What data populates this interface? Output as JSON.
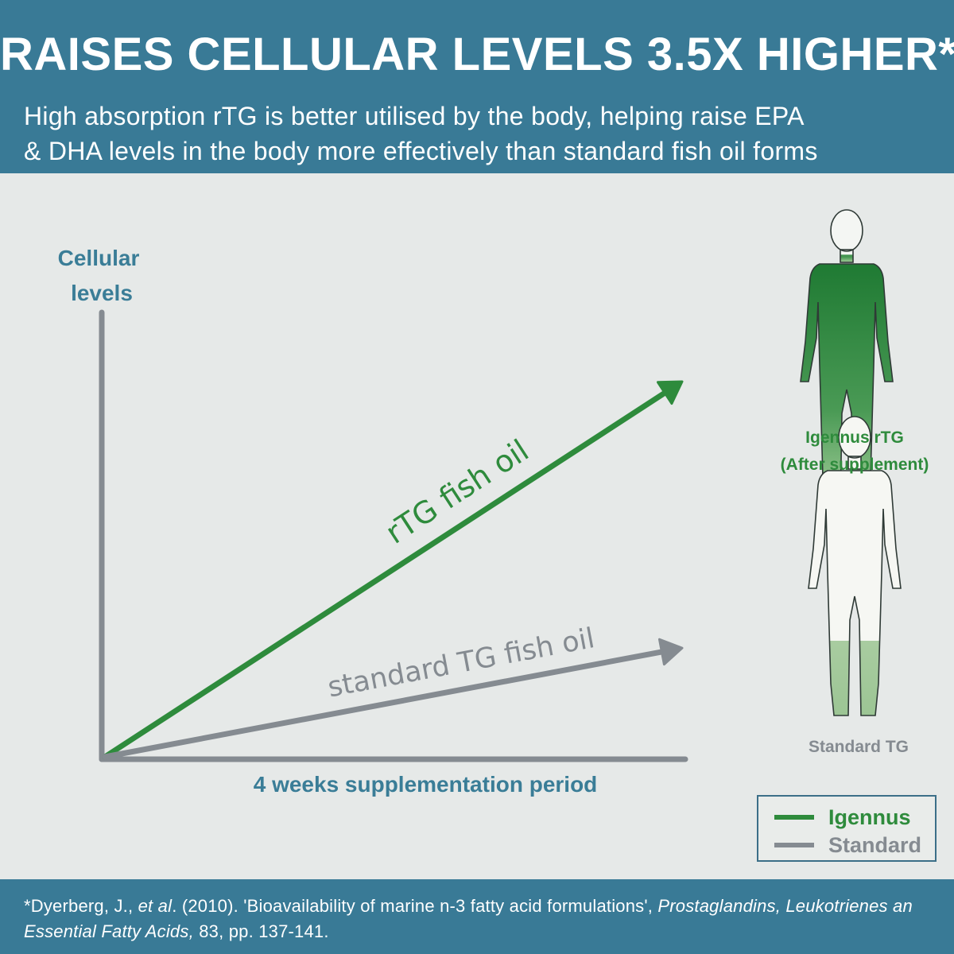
{
  "header": {
    "headline": "RAISES CELLULAR LEVELS 3.5X HIGHER*",
    "subline_1": "High absorption rTG  is better utilised by the body, helping raise EPA",
    "subline_2": "& DHA levels in the body more effectively than standard fish oil forms"
  },
  "chart_data": {
    "type": "line",
    "ylabel_line1": "Cellular",
    "ylabel_line2": "levels",
    "xlabel": "4 weeks supplementation period",
    "x": [
      0,
      1
    ],
    "series": [
      {
        "name": "rTG fish oil",
        "values": [
          0,
          1.0
        ],
        "color": "#2e8b3c"
      },
      {
        "name": "standard TG fish oil",
        "values": [
          0,
          0.29
        ],
        "color": "#858b91"
      }
    ]
  },
  "figures": {
    "igennus_line1": "Igennus rTG",
    "igennus_line2": "(After supplement)",
    "igennus_fill_fraction": 0.85,
    "standard_label": "Standard TG",
    "standard_fill_fraction": 0.25
  },
  "legend": {
    "items": [
      {
        "label": "Igennus",
        "color": "#2e8b3c"
      },
      {
        "label": "Standard",
        "color": "#858b91"
      }
    ]
  },
  "footer": {
    "citation_prefix": "*Dyerberg, J., ",
    "citation_etal": "et al",
    "citation_mid": ". (2010). 'Bioavailability of marine n-3 fatty acid formulations', ",
    "citation_journal": "Prostaglandins, Leukotrienes an Essential Fatty Acids,",
    "citation_suffix": " 83, pp. 137-141."
  },
  "colors": {
    "header_bg": "#397a96",
    "axis_label": "#3a7d97",
    "green": "#2e8b3c",
    "grey": "#858b91"
  }
}
